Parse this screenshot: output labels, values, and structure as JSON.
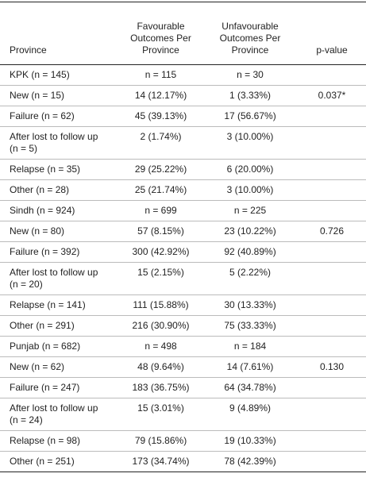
{
  "table": {
    "header": [
      "Province",
      "Favourable Outcomes Per Province",
      "Unfavourable Outcomes Per Province",
      "p-value"
    ],
    "rows": [
      [
        "KPK (n = 145)",
        "n = 115",
        "n = 30"
      ],
      [
        "New (n = 15)",
        "14 (12.17%)",
        "1 (3.33%)",
        "0.037*"
      ],
      [
        "Failure (n = 62)",
        "45 (39.13%)",
        "17 (56.67%)"
      ],
      [
        "After lost to follow up (n = 5)",
        "2 (1.74%)",
        "3 (10.00%)"
      ],
      [
        "Relapse (n = 35)",
        "29 (25.22%)",
        "6 (20.00%)"
      ],
      [
        "Other (n = 28)",
        "25 (21.74%)",
        "3 (10.00%)"
      ],
      [
        "Sindh (n = 924)",
        "n = 699",
        "n = 225"
      ],
      [
        "New (n = 80)",
        "57 (8.15%)",
        "23 (10.22%)",
        "0.726"
      ],
      [
        "Failure (n = 392)",
        "300 (42.92%)",
        "92 (40.89%)"
      ],
      [
        "After lost to follow up (n = 20)",
        "15 (2.15%)",
        "5 (2.22%)"
      ],
      [
        "Relapse (n = 141)",
        "111 (15.88%)",
        "30 (13.33%)"
      ],
      [
        "Other (n = 291)",
        "216 (30.90%)",
        "75 (33.33%)"
      ],
      [
        "Punjab (n = 682)",
        "n = 498",
        "n = 184"
      ],
      [
        "New (n = 62)",
        "48 (9.64%)",
        "14 (7.61%)",
        "0.130"
      ],
      [
        "Failure (n = 247)",
        "183 (36.75%)",
        "64 (34.78%)"
      ],
      [
        "After lost to follow up (n = 24)",
        "15 (3.01%)",
        "9 (4.89%)"
      ],
      [
        "Relapse (n = 98)",
        "79 (15.86%)",
        "19 (10.33%)"
      ],
      [
        "Other (n = 251)",
        "173 (34.74%)",
        "78 (42.39%)"
      ]
    ]
  }
}
